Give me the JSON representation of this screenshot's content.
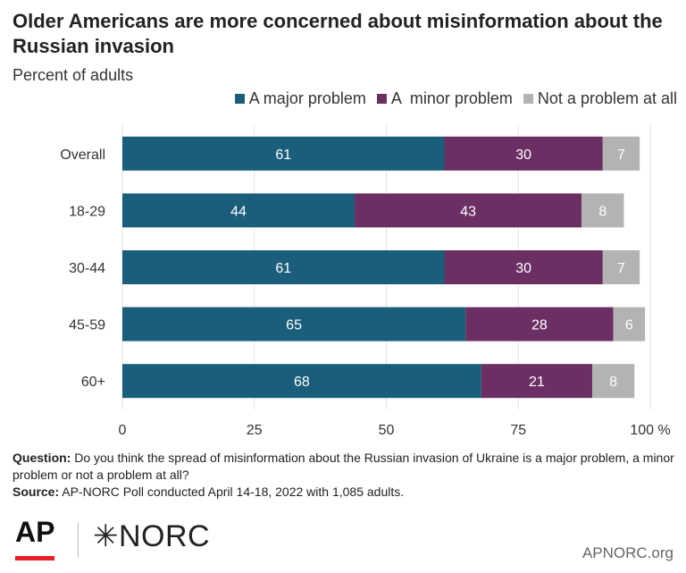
{
  "title": "Older Americans are more concerned about misinformation about the Russian invasion",
  "subtitle": "Percent of adults",
  "colors": {
    "major": "#1b5e7b",
    "minor": "#6b2f63",
    "none": "#b3b3b3"
  },
  "chart_data": {
    "type": "bar",
    "orientation": "horizontal",
    "stacked": true,
    "title": "Older Americans are more concerned about misinformation about the Russian invasion",
    "subtitle": "Percent of adults",
    "categories": [
      "Overall",
      "18-29",
      "30-44",
      "45-59",
      "60+"
    ],
    "series": [
      {
        "name": "A major problem",
        "values": [
          61,
          44,
          61,
          65,
          68
        ]
      },
      {
        "name": "A  minor problem",
        "values": [
          30,
          43,
          30,
          28,
          21
        ]
      },
      {
        "name": "Not a problem at all",
        "values": [
          7,
          8,
          7,
          6,
          8
        ]
      }
    ],
    "xlim": [
      0,
      100
    ],
    "x_ticks": [
      "0",
      "25",
      "50",
      "75",
      "100 %"
    ],
    "legend_position": "top-right",
    "grid": true
  },
  "footer": {
    "question_label": "Question:",
    "question_text": " Do you think the spread of misinformation about the Russian invasion of Ukraine is a major problem, a minor problem or not a problem at all?",
    "source_label": "Source:",
    "source_text": " AP-NORC Poll conducted April 14-18, 2022 with 1,085 adults."
  },
  "logos": {
    "ap": "AP",
    "norc": "NORC"
  },
  "site": "APNORC.org"
}
